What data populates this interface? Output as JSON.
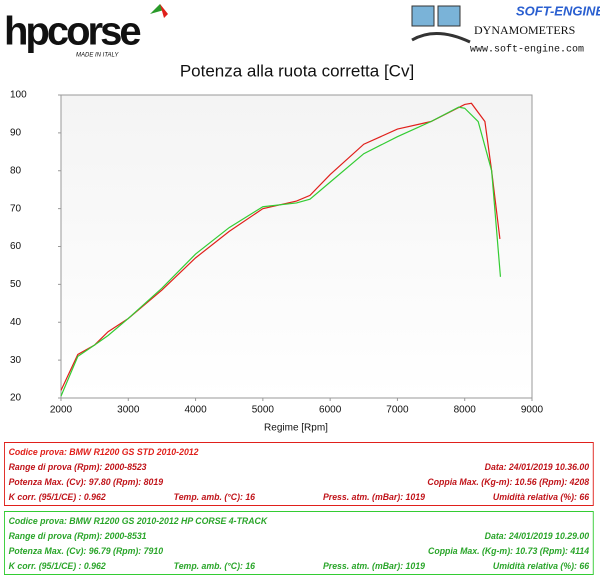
{
  "header": {
    "brand": "hpcorse",
    "brand_note": "MADE IN ITALY",
    "dyno_brand": "SOFT-ENGINE",
    "dyno_sub": "DYNAMOMETERS",
    "dyno_url": "www.soft-engine.com"
  },
  "chart_data": {
    "type": "line",
    "title": "Potenza alla ruota corretta [Cv]",
    "x_label": "Regime [Rpm]",
    "xlim": [
      2000,
      9000
    ],
    "xticks": [
      2000,
      3000,
      4000,
      5000,
      6000,
      7000,
      8000,
      9000
    ],
    "ylim": [
      20,
      100
    ],
    "yticks": [
      20,
      30,
      40,
      50,
      60,
      70,
      80,
      90,
      100
    ],
    "series": [
      {
        "color": "#e0201b",
        "x": [
          2000,
          2250,
          2500,
          2700,
          3000,
          3500,
          4000,
          4500,
          5000,
          5500,
          5700,
          6000,
          6500,
          7000,
          7500,
          8000,
          8100,
          8300,
          8400,
          8523
        ],
        "values": [
          22,
          31.5,
          34,
          37.5,
          41,
          48.5,
          57,
          64,
          70,
          72,
          73.5,
          79,
          87,
          91,
          93,
          97.5,
          97.8,
          93,
          80,
          62
        ]
      },
      {
        "color": "#33cc33",
        "x": [
          2000,
          2250,
          2500,
          2700,
          3000,
          3500,
          4000,
          4500,
          5000,
          5500,
          5700,
          6000,
          6500,
          7000,
          7500,
          7910,
          8000,
          8200,
          8400,
          8531
        ],
        "values": [
          20.5,
          31,
          34,
          36.5,
          41,
          49,
          58,
          65,
          70.5,
          71.5,
          72.5,
          77,
          84.5,
          89,
          93,
          96.8,
          96.5,
          93,
          80,
          52
        ]
      }
    ]
  },
  "tests": [
    {
      "rows": [
        [
          "Codice prova: BMW R1200 GS STD  2010-2012"
        ],
        [
          "Range di prova (Rpm): 2000-8523",
          "Data: 24/01/2019  10.36.00"
        ],
        [
          "Potenza Max. (Cv): 97.80  (Rpm): 8019",
          "Coppia Max. (Kg-m): 10.56  (Rpm): 4208"
        ],
        [
          "K corr. (95/1/CE) : 0.962",
          "Temp. amb. (°C): 16",
          "Press. atm. (mBar): 1019",
          "Umidità relativa (%): 66"
        ]
      ]
    },
    {
      "rows": [
        [
          "Codice prova: BMW R1200 GS  2010-2012 HP CORSE 4-TRACK"
        ],
        [
          "Range di prova (Rpm): 2000-8531",
          "Data: 24/01/2019  10.29.00"
        ],
        [
          "Potenza Max. (Cv): 96.79  (Rpm): 7910",
          "Coppia Max. (Kg-m): 10.73  (Rpm): 4114"
        ],
        [
          "K corr. (95/1/CE) : 0.962",
          "Temp. amb. (°C): 16",
          "Press. atm. (mBar): 1019",
          "Umidità relativa (%): 66"
        ]
      ]
    }
  ]
}
